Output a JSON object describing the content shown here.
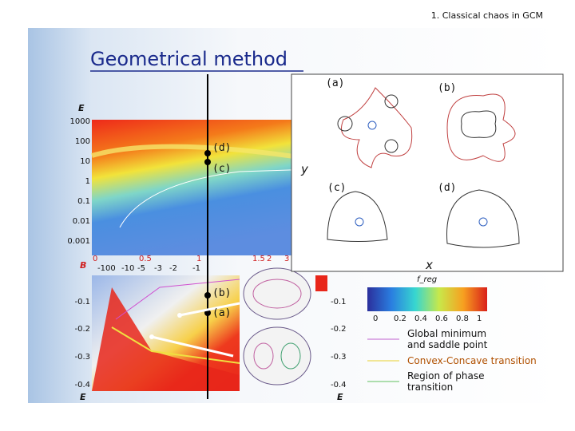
{
  "header": {
    "section": "1. Classical chaos in GCM",
    "title": "Geometrical method"
  },
  "contours": {
    "panels": [
      "(a)",
      "(b)",
      "(c)",
      "(d)"
    ],
    "y_label": "y",
    "x_label": "x"
  },
  "points": [
    "(d)",
    "(c)",
    "(b)",
    "(a)"
  ],
  "energy_plot": {
    "e_label": "E",
    "e_ticks": [
      "1000",
      "100",
      "10",
      "1",
      "0.1",
      "0.01",
      "0.001"
    ],
    "b_label": "B",
    "b_ticks_top": [
      "0",
      "0.5",
      "1",
      "1.5",
      "2",
      "3"
    ],
    "b_ticks_bottom": [
      "-100",
      "-10",
      "-5",
      "-3",
      "-2",
      "-1"
    ]
  },
  "lower_plot": {
    "e_label": "E",
    "e_ticks": [
      "-0.1",
      "-0.2",
      "-0.3",
      "-0.4"
    ],
    "right_e_label": "E",
    "right_e_ticks": [
      "-0.1",
      "-0.2",
      "-0.3",
      "-0.4"
    ]
  },
  "colorbar": {
    "label": "f_reg",
    "ticks": [
      "0",
      "0.2",
      "0.4",
      "0.6",
      "0.8",
      "1"
    ]
  },
  "legend": [
    "Global minimum and saddle point",
    "Convex-Concave transition",
    "Region of phase transition"
  ]
}
